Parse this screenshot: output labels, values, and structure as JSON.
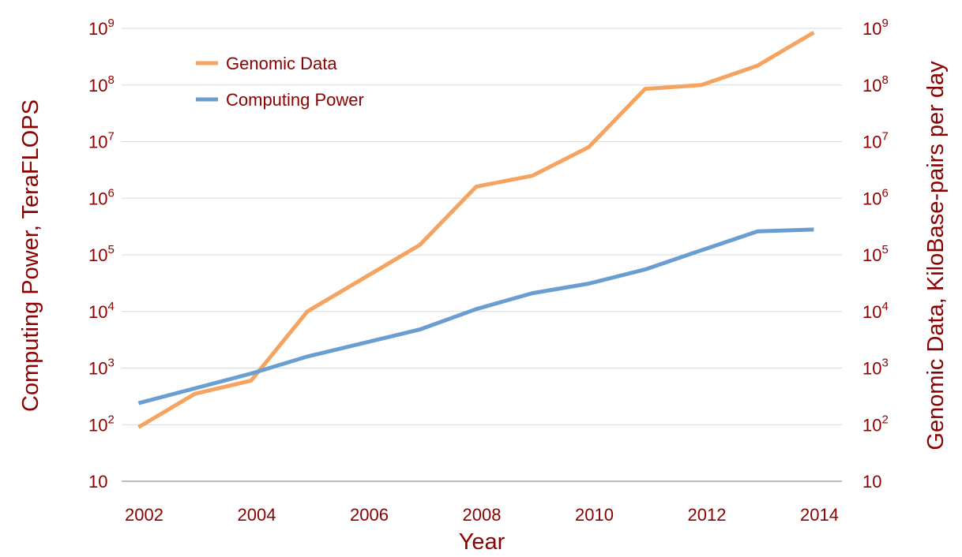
{
  "chart_data": {
    "type": "line",
    "xlabel": "Year",
    "ylabel_left": "Computing Power, TeraFLOPS",
    "ylabel_right": "Genomic Data, KiloBase-pairs per day",
    "yscale": "log",
    "ylim": [
      10,
      1000000000
    ],
    "xlim": [
      2001.6,
      2014.4
    ],
    "grid": true,
    "legend_position": "top-left",
    "x_ticks": [
      2002,
      2004,
      2006,
      2008,
      2010,
      2012,
      2014
    ],
    "x_tick_labels": [
      "2002",
      "2004",
      "2006",
      "2008",
      "2010",
      "2012",
      "2014"
    ],
    "y_ticks": [
      {
        "value": 10,
        "base": "10",
        "exp": ""
      },
      {
        "value": 100,
        "base": "10",
        "exp": "2"
      },
      {
        "value": 1000,
        "base": "10",
        "exp": "3"
      },
      {
        "value": 10000,
        "base": "10",
        "exp": "4"
      },
      {
        "value": 100000,
        "base": "10",
        "exp": "5"
      },
      {
        "value": 1000000,
        "base": "10",
        "exp": "6"
      },
      {
        "value": 10000000,
        "base": "10",
        "exp": "7"
      },
      {
        "value": 100000000,
        "base": "10",
        "exp": "8"
      },
      {
        "value": 1000000000,
        "base": "10",
        "exp": "9"
      }
    ],
    "series": [
      {
        "name": "Genomic Data",
        "color": "#f4a460",
        "points": [
          [
            2001.9,
            90
          ],
          [
            2002.9,
            350
          ],
          [
            2003.9,
            600
          ],
          [
            2004.9,
            10000
          ],
          [
            2006.9,
            150000
          ],
          [
            2007.9,
            1600000
          ],
          [
            2008.9,
            2500000
          ],
          [
            2009.9,
            8000000
          ],
          [
            2010.9,
            85000000
          ],
          [
            2011.9,
            100000000
          ],
          [
            2012.9,
            220000000
          ],
          [
            2013.9,
            850000000
          ]
        ]
      },
      {
        "name": "Computing Power",
        "color": "#6a9ed0",
        "points": [
          [
            2001.9,
            240
          ],
          [
            2003.9,
            800
          ],
          [
            2004.9,
            1600
          ],
          [
            2006.9,
            4800
          ],
          [
            2007.9,
            11000
          ],
          [
            2008.9,
            21000
          ],
          [
            2009.9,
            31000
          ],
          [
            2010.9,
            55000
          ],
          [
            2011.9,
            120000
          ],
          [
            2012.9,
            260000
          ],
          [
            2013.9,
            280000
          ]
        ]
      }
    ]
  }
}
